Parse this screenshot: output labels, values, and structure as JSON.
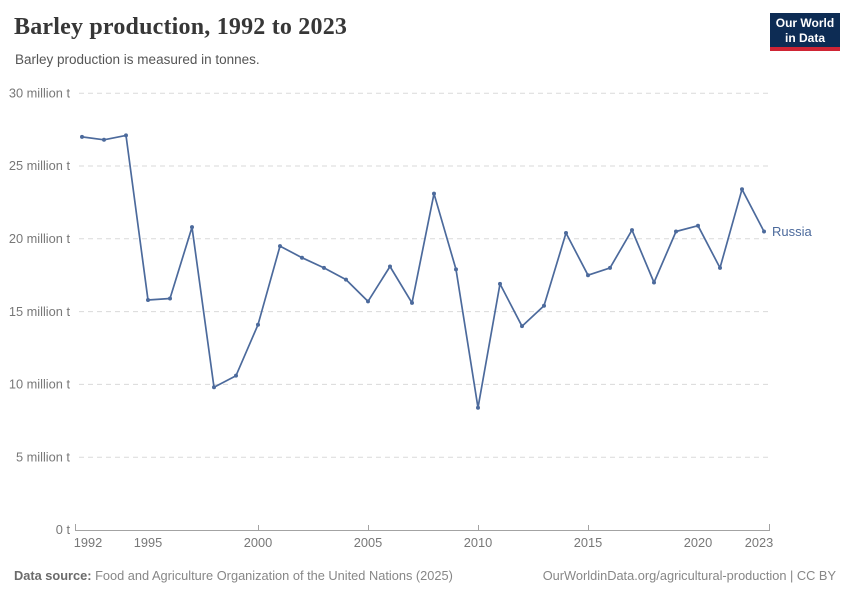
{
  "header": {
    "title": "Barley production, 1992 to 2023",
    "subtitle": "Barley production is measured in tonnes."
  },
  "logo": {
    "line1": "Our World",
    "line2": "in Data",
    "bg_color": "#0d2c54",
    "accent_color": "#cf2434"
  },
  "chart_data": {
    "type": "line",
    "title": "Barley production, 1992 to 2023",
    "ylabel": "",
    "xlabel": "",
    "unit": "million tonnes",
    "x": [
      1992,
      1993,
      1994,
      1995,
      1996,
      1997,
      1998,
      1999,
      2000,
      2001,
      2002,
      2003,
      2004,
      2005,
      2006,
      2007,
      2008,
      2009,
      2010,
      2011,
      2012,
      2013,
      2014,
      2015,
      2016,
      2017,
      2018,
      2019,
      2020,
      2021,
      2022,
      2023
    ],
    "series": [
      {
        "name": "Russia",
        "color": "#4C6A9C",
        "values": [
          27.0,
          26.8,
          27.1,
          15.8,
          15.9,
          20.8,
          9.8,
          10.6,
          14.1,
          19.5,
          18.7,
          18.0,
          17.2,
          15.7,
          18.1,
          15.6,
          23.1,
          17.9,
          8.4,
          16.9,
          14.0,
          15.4,
          20.4,
          17.5,
          18.0,
          20.6,
          17.0,
          20.5,
          20.9,
          18.0,
          23.4,
          20.5
        ]
      }
    ],
    "ylim": [
      0,
      30
    ],
    "yticks": [
      0,
      5,
      10,
      15,
      20,
      25,
      30
    ],
    "ytick_labels": [
      "0 t",
      "5 million t",
      "10 million t",
      "15 million t",
      "20 million t",
      "25 million t",
      "30 million t"
    ],
    "xticks": [
      1992,
      1995,
      2000,
      2005,
      2010,
      2015,
      2020,
      2023
    ],
    "xtick_labels": [
      "1992",
      "1995",
      "2000",
      "2005",
      "2010",
      "2015",
      "2020",
      "2023"
    ],
    "axis_tick_years": [
      2000,
      2005,
      2010,
      2015
    ],
    "grid": "horizontal dashed",
    "legend_position": "line-end label"
  },
  "footer": {
    "source_label": "Data source:",
    "source_text": " Food and Agriculture Organization of the United Nations (2025)",
    "link_text": "OurWorldinData.org/agricultural-production | CC BY"
  }
}
